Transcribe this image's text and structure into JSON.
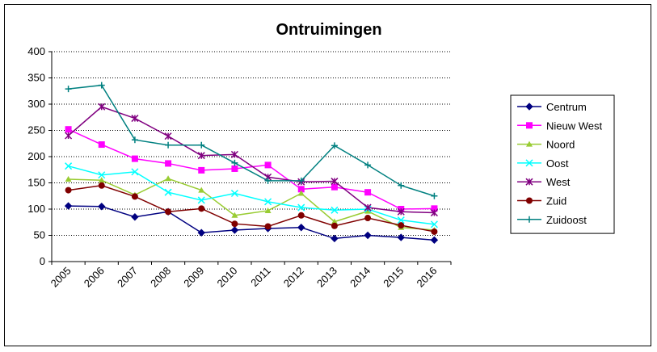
{
  "chart_data": {
    "type": "line",
    "title": "Ontruimingen",
    "xlabel": "",
    "ylabel": "",
    "categories": [
      "2005",
      "2006",
      "2007",
      "2008",
      "2009",
      "2010",
      "2011",
      "2012",
      "2013",
      "2014",
      "2015",
      "2016"
    ],
    "ylim": [
      0,
      400
    ],
    "yticks": [
      0,
      50,
      100,
      150,
      200,
      250,
      300,
      350,
      400
    ],
    "grid": true,
    "legend_position": "right",
    "series": [
      {
        "name": "Centrum",
        "color": "#000080",
        "marker": "diamond",
        "values": [
          106,
          105,
          85,
          95,
          55,
          60,
          63,
          65,
          44,
          50,
          46,
          41
        ]
      },
      {
        "name": "Nieuw West",
        "color": "#ff00ff",
        "marker": "square",
        "values": [
          252,
          223,
          196,
          187,
          174,
          177,
          184,
          138,
          142,
          132,
          100,
          101
        ]
      },
      {
        "name": "Noord",
        "color": "#99cc33",
        "marker": "triangle",
        "values": [
          157,
          155,
          127,
          158,
          136,
          88,
          97,
          130,
          76,
          96,
          65,
          60
        ]
      },
      {
        "name": "Oost",
        "color": "#00ffff",
        "marker": "x",
        "values": [
          182,
          165,
          171,
          132,
          117,
          130,
          114,
          103,
          98,
          100,
          79,
          71
        ]
      },
      {
        "name": "West",
        "color": "#800080",
        "marker": "star",
        "values": [
          240,
          295,
          273,
          239,
          202,
          204,
          161,
          152,
          153,
          103,
          95,
          93
        ]
      },
      {
        "name": "Zuid",
        "color": "#800000",
        "marker": "circle",
        "values": [
          136,
          145,
          124,
          95,
          101,
          72,
          67,
          88,
          68,
          83,
          69,
          57
        ]
      },
      {
        "name": "Zuidoost",
        "color": "#008080",
        "marker": "plus",
        "values": [
          329,
          336,
          232,
          222,
          222,
          188,
          154,
          154,
          221,
          184,
          145,
          125
        ]
      }
    ]
  }
}
